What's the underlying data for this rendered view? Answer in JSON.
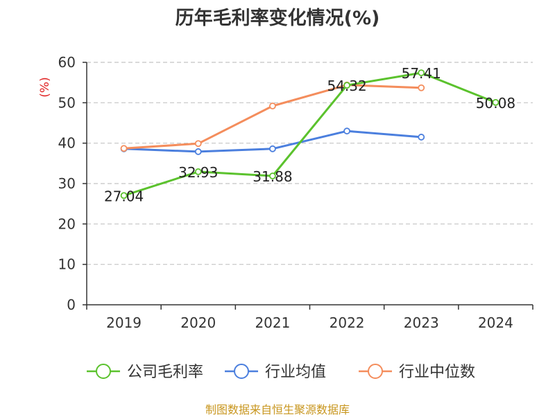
{
  "source_note": "制图数据来自恒生聚源数据库",
  "chart_data": {
    "type": "line",
    "title": "历年毛利率变化情况(%)",
    "ylabel": "(%)",
    "xlabel": "",
    "categories": [
      "2019",
      "2020",
      "2021",
      "2022",
      "2023",
      "2024"
    ],
    "ylim": [
      0,
      60
    ],
    "yticks": [
      0,
      10,
      20,
      30,
      40,
      50,
      60
    ],
    "grid": true,
    "legend_position": "bottom",
    "series": [
      {
        "name": "公司毛利率",
        "color": "#5bc22d",
        "values": [
          27.04,
          32.93,
          31.88,
          54.32,
          57.41,
          50.08
        ],
        "labels": [
          "27.04",
          "32.93",
          "31.88",
          "54.32",
          "57.41",
          "50.08"
        ]
      },
      {
        "name": "行业均值",
        "color": "#4b7fde",
        "values": [
          38.6,
          37.9,
          38.6,
          43.0,
          41.5,
          null
        ]
      },
      {
        "name": "行业中位数",
        "color": "#f48d5c",
        "values": [
          38.7,
          39.9,
          49.2,
          54.4,
          53.7,
          null
        ]
      }
    ]
  }
}
